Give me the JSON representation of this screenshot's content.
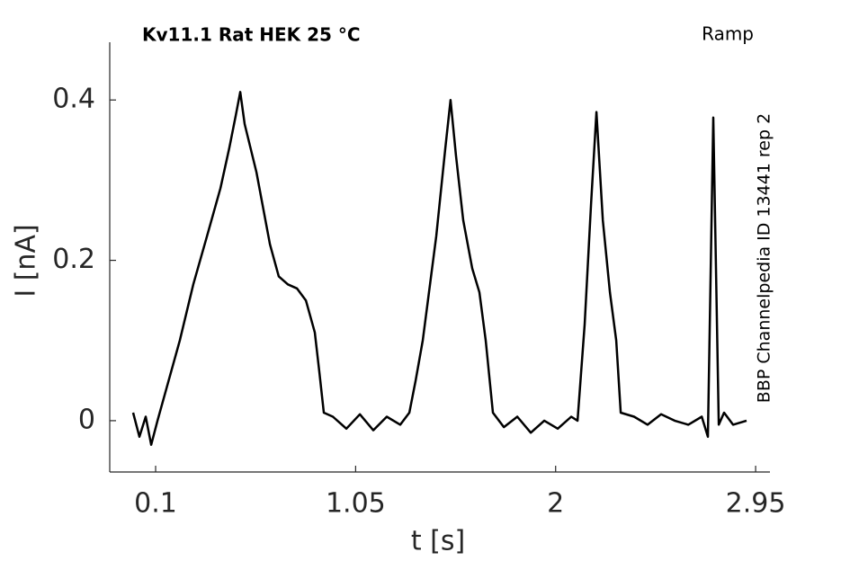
{
  "chart_data": {
    "type": "line",
    "title": "Kv11.1  Rat  HEK  25 °C",
    "subtitle": "Ramp",
    "annotation": "BBP Channelpedia ID 13441 rep 2",
    "x_label": "t [s]",
    "y_label": "I [nA]",
    "xlim": [
      -0.118,
      3.018
    ],
    "ylim": [
      -0.064,
      0.472
    ],
    "xticks": [
      0.1,
      1.05,
      2,
      2.95
    ],
    "yticks": [
      0,
      0.2,
      0.4
    ],
    "series": [
      {
        "name": "I",
        "color": "#000000",
        "x": [
          -0.007,
          0.023,
          0.053,
          0.079,
          0.109,
          0.151,
          0.215,
          0.279,
          0.344,
          0.408,
          0.45,
          0.48,
          0.502,
          0.523,
          0.579,
          0.643,
          0.685,
          0.728,
          0.771,
          0.814,
          0.856,
          0.878,
          0.899,
          0.942,
          1.006,
          1.07,
          1.134,
          1.198,
          1.262,
          1.305,
          1.335,
          1.369,
          1.433,
          1.476,
          1.501,
          1.527,
          1.561,
          1.604,
          1.638,
          1.668,
          1.702,
          1.754,
          1.818,
          1.882,
          1.946,
          2.01,
          2.074,
          2.104,
          2.138,
          2.168,
          2.194,
          2.224,
          2.258,
          2.288,
          2.309,
          2.373,
          2.437,
          2.501,
          2.565,
          2.63,
          2.694,
          2.723,
          2.749,
          2.775,
          2.8,
          2.843,
          2.907
        ],
        "values": [
          0.01,
          -0.02,
          0.005,
          -0.03,
          0.0,
          0.04,
          0.1,
          0.17,
          0.23,
          0.29,
          0.34,
          0.38,
          0.41,
          0.37,
          0.31,
          0.22,
          0.18,
          0.17,
          0.165,
          0.15,
          0.11,
          0.06,
          0.01,
          0.005,
          -0.01,
          0.008,
          -0.012,
          0.005,
          -0.005,
          0.01,
          0.05,
          0.1,
          0.23,
          0.34,
          0.4,
          0.33,
          0.25,
          0.19,
          0.16,
          0.1,
          0.01,
          -0.008,
          0.005,
          -0.015,
          0.0,
          -0.01,
          0.005,
          0.0,
          0.12,
          0.27,
          0.385,
          0.25,
          0.16,
          0.1,
          0.01,
          0.005,
          -0.005,
          0.008,
          0.0,
          -0.005,
          0.005,
          -0.02,
          0.378,
          -0.005,
          0.01,
          -0.005,
          0.0
        ]
      }
    ]
  }
}
